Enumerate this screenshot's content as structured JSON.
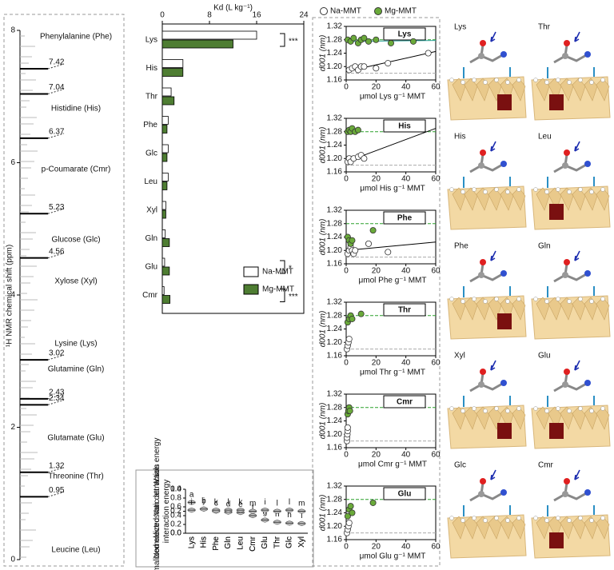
{
  "chart_data": [
    {
      "type": "spectrum",
      "ylabel": "¹H NMR chemical shift (ppm)",
      "ylim": [
        0,
        8
      ],
      "yticks": [
        0,
        2,
        4,
        6,
        8
      ],
      "compounds": [
        "Phenylalanine (Phe)",
        "Histidine (His)",
        "p-Coumarate (Cmr)",
        "Glucose (Glc)",
        "Xylose (Xyl)",
        "Lysine (Lys)",
        "Glutamine (Gln)",
        "Glutamate (Glu)",
        "Threonine (Thr)",
        "Leucine (Leu)"
      ],
      "peaks": [
        7.42,
        7.04,
        6.37,
        5.23,
        4.56,
        3.02,
        2.43,
        2.34,
        1.32,
        0.95
      ],
      "color": "#000000"
    },
    {
      "type": "hbar",
      "title": "Kd (L kg⁻¹)",
      "categories": [
        "Lys",
        "His",
        "Thr",
        "Phe",
        "Glc",
        "Leu",
        "Xyl",
        "Gln",
        "Glu",
        "Cmr"
      ],
      "series": [
        {
          "name": "Na-MMT",
          "color": "#ffffff",
          "values": [
            16,
            3.5,
            1.5,
            1,
            1,
            1,
            0.6,
            0.5,
            0.4,
            0.3
          ]
        },
        {
          "name": "Mg-MMT",
          "color": "#4e7d32",
          "values": [
            12,
            3.5,
            2,
            0.8,
            0.8,
            0.8,
            0.6,
            1.2,
            1.2,
            1.3
          ]
        }
      ],
      "significance": [
        "***",
        null,
        null,
        null,
        null,
        null,
        null,
        null,
        "*",
        "***"
      ],
      "xlim": [
        0,
        24
      ],
      "xticks": [
        0,
        8,
        16,
        24
      ]
    },
    {
      "type": "violin",
      "ylabel": "Normalized electrostatic attraction energy",
      "categories": [
        "Lys",
        "His",
        "Phe",
        "Gln",
        "Leu",
        "Cmr",
        "Glu",
        "Thr",
        "Glc",
        "Xyl"
      ],
      "values": [
        0.7,
        0.55,
        0.5,
        0.48,
        0.47,
        0.4,
        0.3,
        0.25,
        0.23,
        0.22
      ],
      "letters": [
        "a",
        "b",
        "c",
        "d",
        "e",
        "f",
        "g",
        "h",
        "h",
        "i"
      ],
      "color": "#c8c8c8",
      "ylim": [
        0,
        1
      ],
      "yticks": [
        {
          "value": 0,
          "label": "0.0"
        },
        {
          "value": 0.2,
          "label": "0.2"
        },
        {
          "value": 0.4,
          "label": "0.4"
        },
        {
          "value": 0.6,
          "label": "0.6"
        },
        {
          "value": 0.8,
          "label": "0.8"
        },
        {
          "value": 1,
          "label": "1.0"
        }
      ]
    },
    {
      "type": "violin",
      "ylabel": "Normalized Van der Waals interaction energy",
      "categories": [
        "Lys",
        "His",
        "Phe",
        "Gln",
        "Leu",
        "Cmr",
        "Glu",
        "Thr",
        "Glc",
        "Xyl"
      ],
      "values": [
        0.21,
        0.22,
        0.21,
        0.21,
        0.21,
        0.2,
        0.21,
        0.2,
        0.21,
        0.2
      ],
      "letters": [
        "i",
        "j",
        "k",
        "l",
        "k",
        "m",
        "i",
        "l",
        "l",
        "m"
      ],
      "color": "#c8c8c8",
      "ylim": [
        0,
        0.4
      ],
      "yticks": [
        {
          "value": 0,
          "label": "0.0"
        },
        {
          "value": 0.2,
          "label": "0.2"
        },
        {
          "value": 0.4,
          "label": "0.4"
        }
      ]
    },
    {
      "type": "scatter",
      "title": "Lys",
      "ylabel": "d001 (nm)",
      "xlabel": "μmol Lys g⁻¹ MMT",
      "xlim": [
        0,
        60
      ],
      "xticks": [
        0,
        20,
        40,
        60
      ],
      "ylim": [
        1.16,
        1.32
      ],
      "yticks": [
        1.16,
        {
          "value": 1.2,
          "label": "1.20"
        },
        1.24,
        1.28,
        1.32
      ],
      "reference_lines": [
        {
          "value": 1.28,
          "color": "#2ca02c"
        },
        {
          "value": 1.18,
          "color": "#aaaaaa"
        }
      ],
      "series": [
        {
          "name": "Na-MMT",
          "color": "#ffffff",
          "x": [
            2,
            4,
            6,
            8,
            10,
            12,
            20,
            28,
            55
          ],
          "values": [
            1.19,
            1.195,
            1.2,
            1.19,
            1.2,
            1.2,
            1.195,
            1.21,
            1.24
          ],
          "trend": {
            "x": [
              0,
              60
            ],
            "values": [
              1.185,
              1.245
            ]
          }
        },
        {
          "name": "Mg-MMT",
          "color": "#6aaa3a",
          "x": [
            1,
            3,
            5,
            8,
            10,
            12,
            15,
            20,
            30,
            45
          ],
          "values": [
            1.28,
            1.275,
            1.285,
            1.27,
            1.28,
            1.285,
            1.275,
            1.28,
            1.27,
            1.275
          ],
          "trend": {
            "x": [
              0,
              60
            ],
            "values": [
              1.275,
              1.278
            ]
          }
        }
      ]
    },
    {
      "type": "scatter",
      "title": "His",
      "ylabel": "d001 (nm)",
      "xlabel": "μmol His g⁻¹ MMT",
      "xlim": [
        0,
        60
      ],
      "xticks": [
        0,
        20,
        40,
        60
      ],
      "ylim": [
        1.16,
        1.32
      ],
      "yticks": [
        1.16,
        {
          "value": 1.2,
          "label": "1.20"
        },
        1.24,
        1.28,
        1.32
      ],
      "reference_lines": [
        {
          "value": 1.28,
          "color": "#2ca02c"
        },
        {
          "value": 1.18,
          "color": "#aaaaaa"
        }
      ],
      "series": [
        {
          "color": "#ffffff",
          "x": [
            1,
            2,
            3,
            5,
            8,
            10,
            12
          ],
          "values": [
            1.19,
            1.2,
            1.19,
            1.2,
            1.205,
            1.21,
            1.2
          ],
          "trend": {
            "x": [
              0,
              60
            ],
            "values": [
              1.19,
              1.29
            ]
          }
        },
        {
          "color": "#6aaa3a",
          "x": [
            1,
            2,
            3,
            4,
            6,
            8
          ],
          "values": [
            1.28,
            1.285,
            1.28,
            1.29,
            1.28,
            1.285
          ]
        }
      ]
    },
    {
      "type": "scatter",
      "title": "Phe",
      "ylabel": "d001 (nm)",
      "xlabel": "μmol Phe g⁻¹ MMT",
      "xlim": [
        0,
        60
      ],
      "xticks": [
        0,
        20,
        40,
        60
      ],
      "ylim": [
        1.16,
        1.32
      ],
      "yticks": [
        1.16,
        {
          "value": 1.2,
          "label": "1.20"
        },
        1.24,
        1.28,
        1.32
      ],
      "reference_lines": [
        {
          "value": 1.28,
          "color": "#2ca02c"
        },
        {
          "value": 1.18,
          "color": "#aaaaaa"
        }
      ],
      "series": [
        {
          "color": "#ffffff",
          "x": [
            1,
            2,
            3,
            4,
            5,
            6,
            15,
            28
          ],
          "values": [
            1.19,
            1.2,
            1.21,
            1.2,
            1.19,
            1.2,
            1.22,
            1.195
          ],
          "trend": {
            "x": [
              0,
              60
            ],
            "values": [
              1.2,
              1.225
            ]
          }
        },
        {
          "color": "#6aaa3a",
          "x": [
            1,
            2,
            3,
            4,
            18
          ],
          "values": [
            1.24,
            1.23,
            1.22,
            1.23,
            1.26
          ]
        }
      ]
    },
    {
      "type": "scatter",
      "title": "Thr",
      "ylabel": "d001 (nm)",
      "xlabel": "μmol Thr g⁻¹ MMT",
      "xlim": [
        0,
        60
      ],
      "xticks": [
        0,
        20,
        40,
        60
      ],
      "ylim": [
        1.16,
        1.32
      ],
      "yticks": [
        1.16,
        {
          "value": 1.2,
          "label": "1.20"
        },
        1.24,
        1.28,
        1.32
      ],
      "reference_lines": [
        {
          "value": 1.28,
          "color": "#2ca02c"
        },
        {
          "value": 1.18,
          "color": "#aaaaaa"
        }
      ],
      "series": [
        {
          "color": "#ffffff",
          "x": [
            0.5,
            1,
            1.5,
            2
          ],
          "values": [
            1.18,
            1.19,
            1.2,
            1.21
          ]
        },
        {
          "color": "#6aaa3a",
          "x": [
            1,
            2,
            3,
            4,
            10
          ],
          "values": [
            1.26,
            1.27,
            1.28,
            1.27,
            1.285
          ]
        }
      ]
    },
    {
      "type": "scatter",
      "title": "Cmr",
      "ylabel": "d001 (nm)",
      "xlabel": "μmol Cmr g⁻¹ MMT",
      "xlim": [
        0,
        60
      ],
      "xticks": [
        0,
        20,
        40,
        60
      ],
      "ylim": [
        1.16,
        1.32
      ],
      "yticks": [
        1.16,
        {
          "value": 1.2,
          "label": "1.20"
        },
        1.24,
        1.28,
        1.32
      ],
      "reference_lines": [
        {
          "value": 1.28,
          "color": "#2ca02c"
        },
        {
          "value": 1.18,
          "color": "#aaaaaa"
        }
      ],
      "series": [
        {
          "color": "#ffffff",
          "x": [
            0.5,
            0.5,
            0.8,
            1,
            1
          ],
          "values": [
            1.18,
            1.19,
            1.2,
            1.21,
            1.22
          ]
        },
        {
          "color": "#6aaa3a",
          "x": [
            1,
            1.5,
            2,
            2.5
          ],
          "values": [
            1.26,
            1.27,
            1.28,
            1.27
          ]
        }
      ]
    },
    {
      "type": "scatter",
      "title": "Glu",
      "ylabel": "d001 (nm)",
      "xlabel": "μmol Glu g⁻¹ MMT",
      "xlim": [
        0,
        60
      ],
      "xticks": [
        0,
        20,
        40,
        60
      ],
      "ylim": [
        1.16,
        1.32
      ],
      "yticks": [
        1.16,
        {
          "value": 1.2,
          "label": "1.20"
        },
        1.24,
        1.28,
        1.32
      ],
      "reference_lines": [
        {
          "value": 1.28,
          "color": "#2ca02c"
        },
        {
          "value": 1.18,
          "color": "#aaaaaa"
        }
      ],
      "series": [
        {
          "color": "#ffffff",
          "x": [
            0.5,
            1,
            1.5,
            2
          ],
          "values": [
            1.18,
            1.19,
            1.2,
            1.21
          ]
        },
        {
          "color": "#6aaa3a",
          "x": [
            1,
            2,
            3,
            4,
            18
          ],
          "values": [
            1.23,
            1.25,
            1.26,
            1.24,
            1.27
          ]
        }
      ]
    }
  ],
  "structures": {
    "labels": [
      "Lys",
      "Thr",
      "His",
      "Leu",
      "Phe",
      "Gln",
      "Xyl",
      "Glu",
      "Glc",
      "Cmr"
    ]
  }
}
